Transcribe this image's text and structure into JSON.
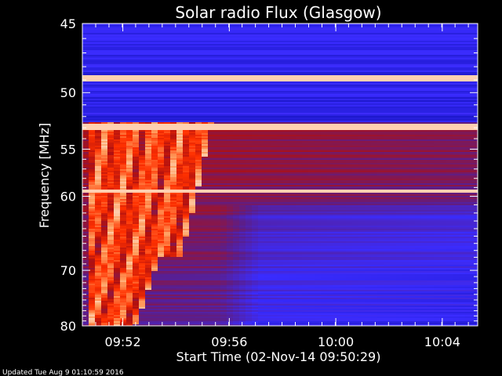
{
  "chart_data": {
    "type": "heatmap",
    "title": "Solar radio Flux (Glasgow)",
    "xlabel": "Start Time (02-Nov-14 09:50:29)",
    "ylabel": "Frequency [MHz]",
    "x_start": "09:50:29",
    "x_end": "10:05:20",
    "x_tick_labels": [
      "09:52",
      "09:56",
      "10:00",
      "10:04"
    ],
    "x_tick_minutes": [
      1.52,
      5.52,
      9.52,
      13.52
    ],
    "x_range_minutes": [
      0,
      14.85
    ],
    "y_tick_labels": [
      "45",
      "50",
      "55",
      "60",
      "70",
      "80"
    ],
    "y_tick_values": [
      45,
      50,
      55,
      60,
      70,
      80
    ],
    "y_range": [
      45,
      80
    ],
    "y_scale": "reciprocal",
    "colormap": [
      "#000000",
      "#0a0aa8",
      "#3a2cff",
      "#5a1e8c",
      "#b01010",
      "#ff3000",
      "#ffa060",
      "#ffffff"
    ],
    "features": {
      "burst": {
        "start_minutes": 0.3,
        "end_minutes": 4.8,
        "freq_range": [
          53,
          80
        ]
      },
      "bright_lines_mhz": [
        48.9,
        52.9,
        59.4
      ]
    }
  },
  "footer": {
    "updated": "Updated Tue Aug  9 01:10:59 2016"
  }
}
